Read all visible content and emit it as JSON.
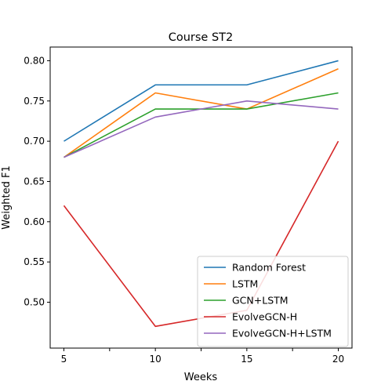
{
  "chart_data": {
    "type": "line",
    "title": "Course ST2",
    "xlabel": "Weeks",
    "ylabel": "Weighted F1",
    "x": [
      5,
      10,
      15,
      20
    ],
    "x_ticks": [
      5,
      10,
      15,
      20
    ],
    "x_ticks_labeled": [
      "5",
      "10",
      "15",
      "20"
    ],
    "x_minor_ticks": [
      7.5,
      12.5,
      17.5
    ],
    "xlim": [
      4.25,
      20.75
    ],
    "ylim": [
      0.443,
      0.817
    ],
    "y_ticks": [
      "0.50",
      "0.55",
      "0.60",
      "0.65",
      "0.70",
      "0.75",
      "0.80"
    ],
    "grid": false,
    "legend_position": "lower-right",
    "series": [
      {
        "name": "Random Forest",
        "color": "#1f77b4",
        "values": [
          0.7,
          0.77,
          0.77,
          0.8
        ]
      },
      {
        "name": "LSTM",
        "color": "#ff7f0e",
        "values": [
          0.68,
          0.76,
          0.74,
          0.79
        ]
      },
      {
        "name": "GCN+LSTM",
        "color": "#2ca02c",
        "values": [
          0.68,
          0.74,
          0.74,
          0.76
        ]
      },
      {
        "name": "EvolveGCN-H",
        "color": "#d62728",
        "values": [
          0.62,
          0.47,
          0.49,
          0.7
        ]
      },
      {
        "name": "EvolveGCN-H+LSTM",
        "color": "#9467bd",
        "values": [
          0.68,
          0.73,
          0.75,
          0.74
        ]
      }
    ]
  }
}
